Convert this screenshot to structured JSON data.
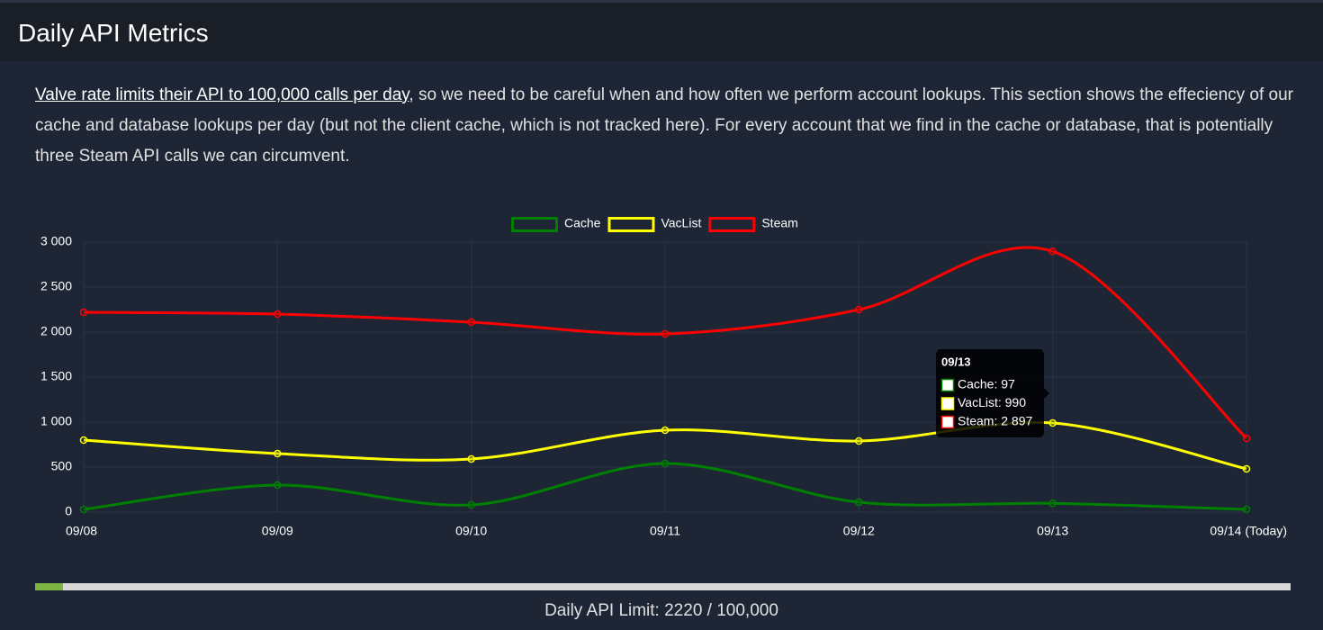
{
  "header": {
    "title": "Daily API Metrics"
  },
  "description": {
    "link": "Valve rate limits their API to 100,000 calls per day",
    "text": ", so we need to be careful when and how often we perform account lookups. This section shows the effeciency of our cache and database lookups per day (but not the client cache, which is not tracked here). For every account that we find in the cache or database, that is potentially three Steam API calls we can circumvent."
  },
  "chart_data": {
    "type": "line",
    "categories": [
      "09/08",
      "09/09",
      "09/10",
      "09/11",
      "09/12",
      "09/13",
      "09/14 (Today)"
    ],
    "series": [
      {
        "name": "Cache",
        "color": "#008000",
        "values": [
          30,
          300,
          80,
          540,
          110,
          97,
          30
        ]
      },
      {
        "name": "VacList",
        "color": "#ffff00",
        "values": [
          800,
          650,
          590,
          910,
          790,
          990,
          480
        ]
      },
      {
        "name": "Steam",
        "color": "#ff0000",
        "values": [
          2220,
          2200,
          2110,
          1980,
          2250,
          2897,
          820
        ]
      }
    ],
    "ylim": [
      0,
      3000
    ],
    "yticks": [
      0,
      500,
      {
        "value": 1000,
        "label": "1 000"
      },
      {
        "value": 1500,
        "label": "1 500"
      },
      {
        "value": 2000,
        "label": "2 000"
      },
      {
        "value": 2500,
        "label": "2 500"
      },
      {
        "value": 3000,
        "label": "3 000"
      }
    ],
    "grid": true,
    "legend": "top",
    "tooltip": {
      "title": "09/13",
      "items": [
        "Cache: 97",
        "VacList: 990",
        "Steam: 2 897"
      ]
    }
  },
  "progress": {
    "label": "Daily API Limit: 2220 / 100,000",
    "value": 2220,
    "max": 100000
  }
}
